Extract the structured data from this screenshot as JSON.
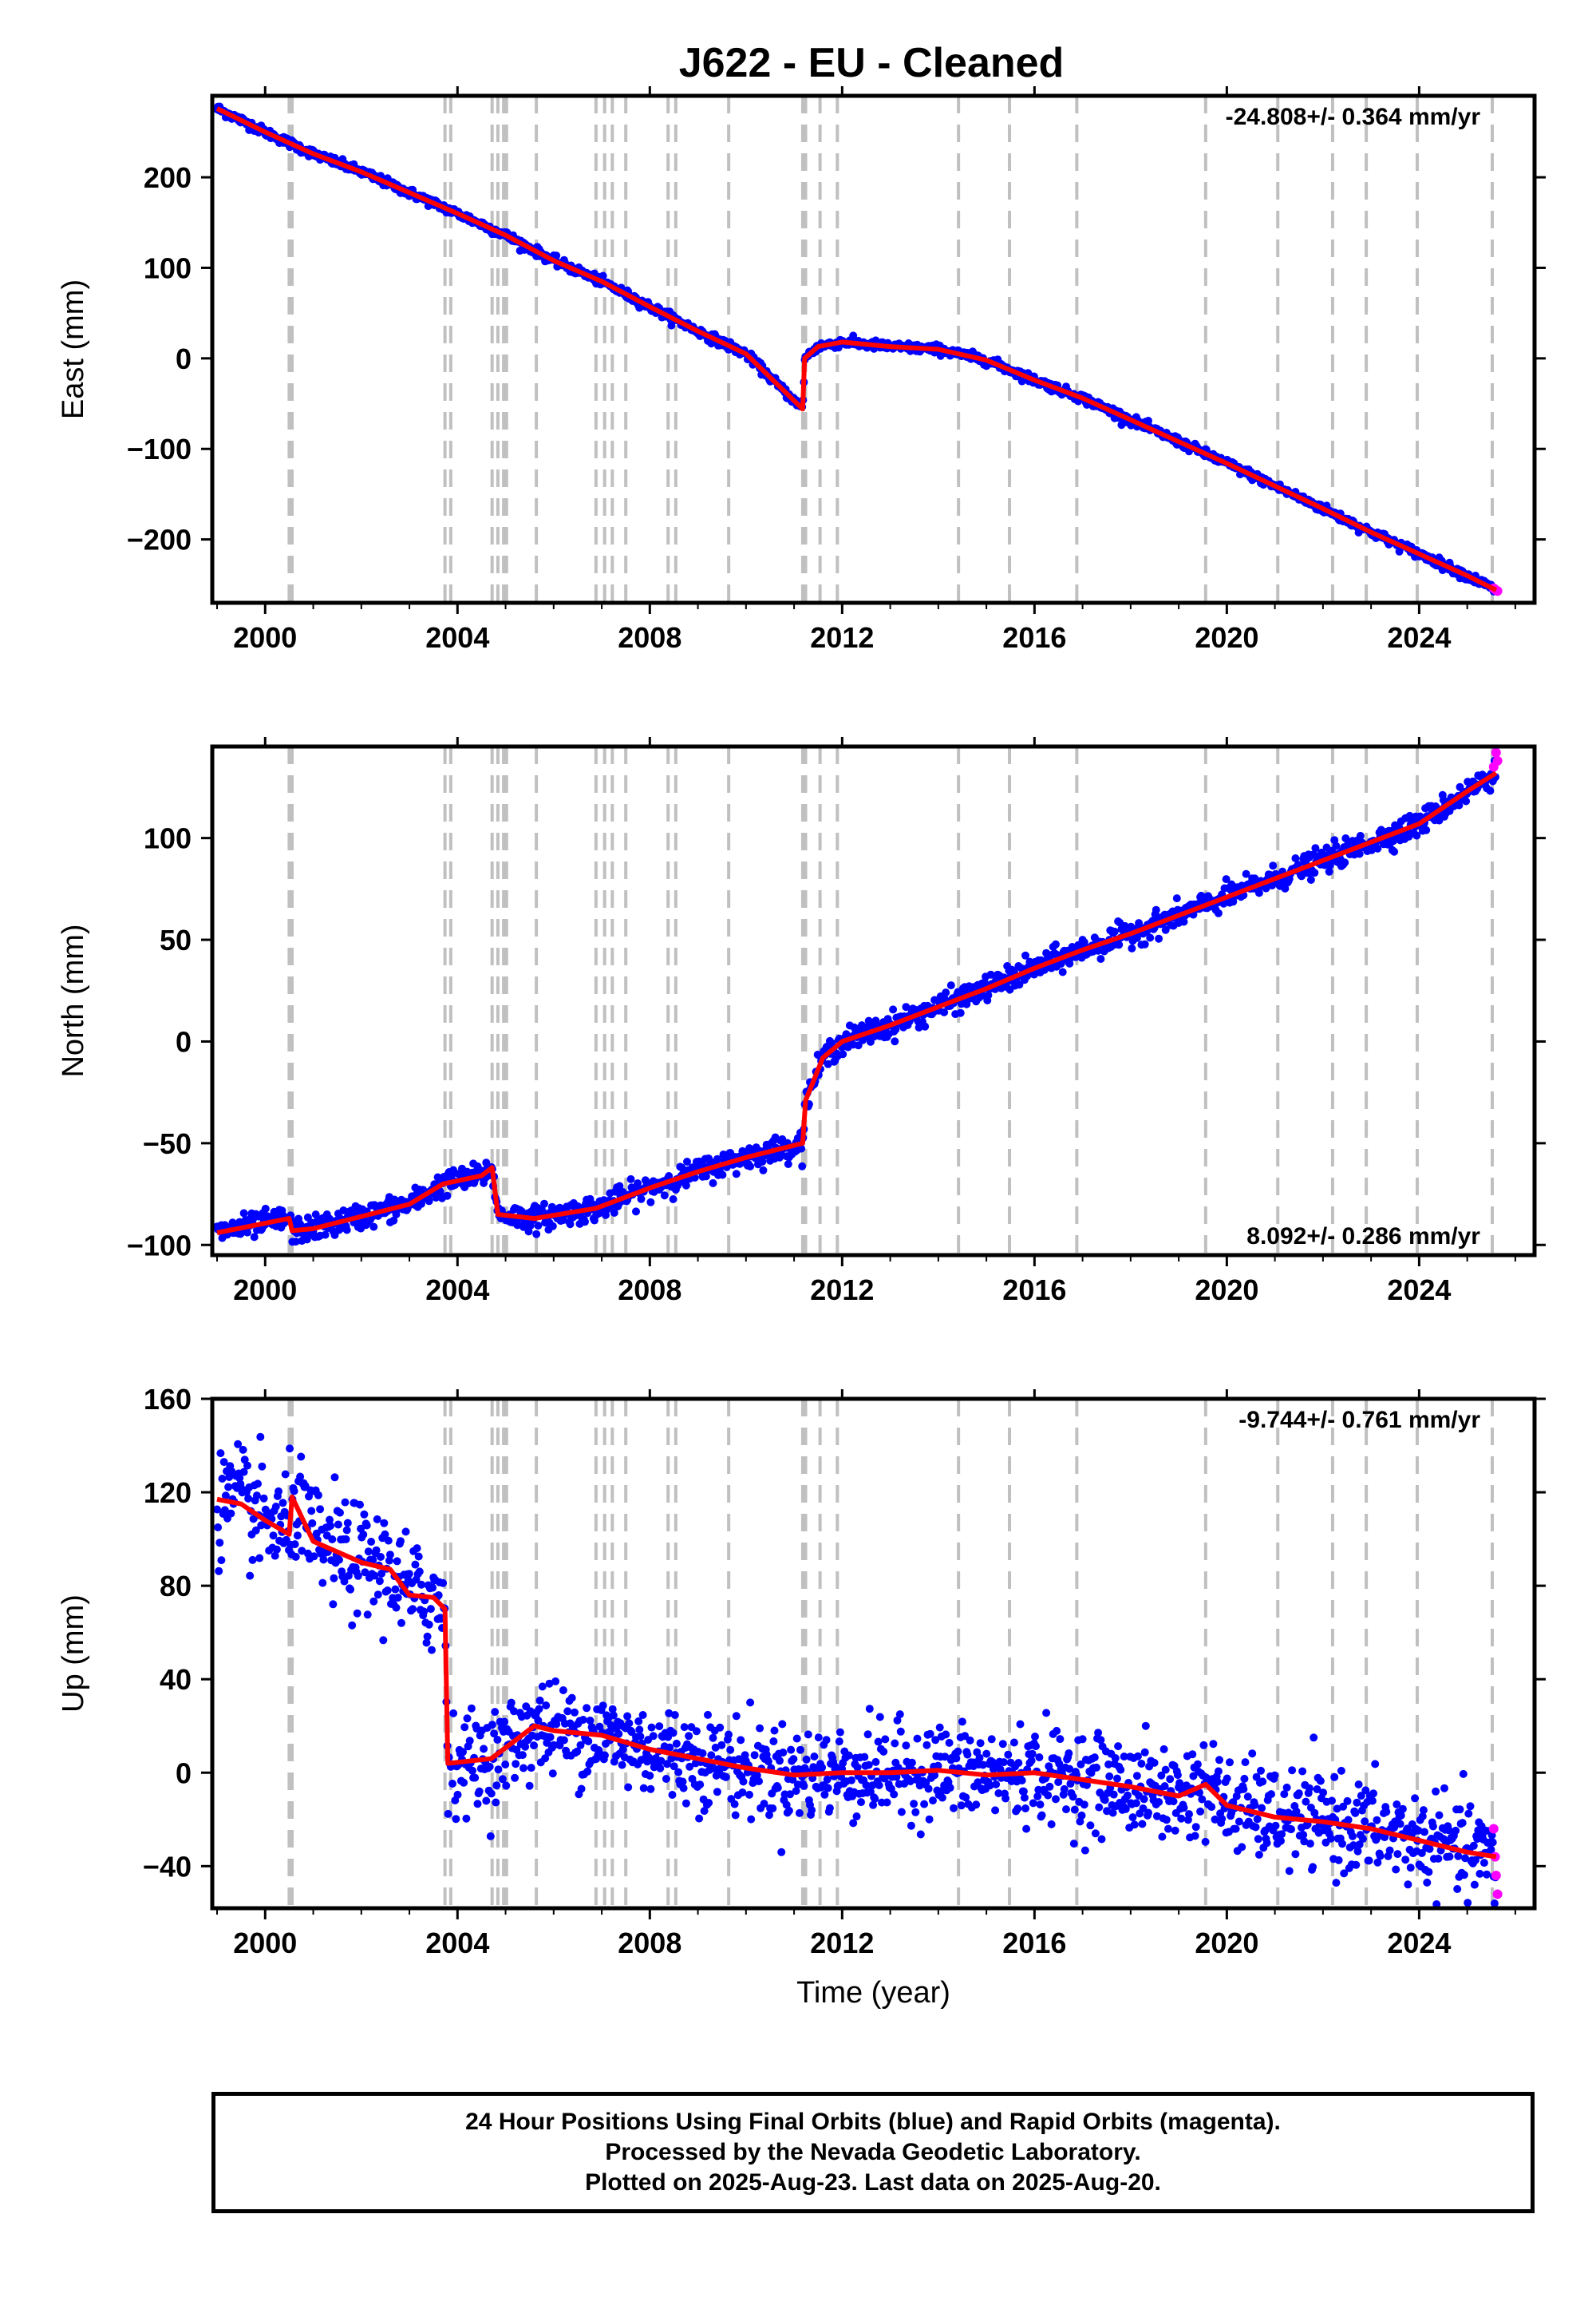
{
  "title": "J622  - EU - Cleaned",
  "footer": {
    "line1": "24 Hour Positions Using Final Orbits (blue) and Rapid Orbits (magenta).",
    "line2": "Processed by the Nevada Geodetic Laboratory.",
    "line3": "Plotted on 2025-Aug-23. Last data on 2025-Aug-20."
  },
  "colors": {
    "final_orbits": "#0000ff",
    "rapid_orbits": "#ff00ff",
    "model": "#ff0000",
    "event_lines": "#c0c0c0"
  },
  "event_lines_years": [
    2000.5,
    2000.56,
    2003.74,
    2003.86,
    2004.72,
    2004.84,
    2004.96,
    2005.02,
    2005.64,
    2006.88,
    2007.06,
    2007.22,
    2007.5,
    2008.38,
    2008.54,
    2009.64,
    2011.18,
    2011.24,
    2011.54,
    2011.9,
    2014.42,
    2015.48,
    2016.88,
    2019.56,
    2021.06,
    2022.2,
    2022.9,
    2023.96,
    2025.52
  ],
  "chart_data": [
    {
      "type": "scatter",
      "name": "east",
      "ylabel": "East (mm)",
      "xlabel": "",
      "xlim": [
        1998.9,
        2026.4
      ],
      "ylim": [
        -270,
        290
      ],
      "xticks": [
        2000,
        2004,
        2008,
        2012,
        2016,
        2020,
        2024
      ],
      "yticks": [
        -200,
        -100,
        0,
        100,
        200
      ],
      "ytick_labels": [
        "−200",
        "−100",
        "0",
        "100",
        "200"
      ],
      "rate_text": "-24.808+/- 0.364 mm/yr",
      "noise_mm": 2.5,
      "x": [
        1999.0,
        2000.0,
        2001.0,
        2002.0,
        2003.0,
        2004.0,
        2005.0,
        2006.0,
        2007.0,
        2008.0,
        2009.0,
        2010.0,
        2011.18,
        2011.22,
        2011.5,
        2012.0,
        2013.0,
        2014.0,
        2015.0,
        2016.0,
        2017.0,
        2018.0,
        2019.0,
        2020.0,
        2021.0,
        2022.0,
        2023.0,
        2024.0,
        2025.0,
        2025.6
      ],
      "model": [
        276,
        250,
        226,
        206,
        183,
        160,
        136,
        108,
        85,
        57,
        30,
        5,
        -56,
        0,
        13,
        18,
        13,
        10,
        -2,
        -24,
        -44,
        -68,
        -92,
        -116,
        -141,
        -166,
        -192,
        -216,
        -240,
        -256
      ],
      "rapid_x": [
        2025.55,
        2025.6,
        2025.63
      ],
      "rapid_y": [
        -254,
        -256,
        -257
      ]
    },
    {
      "type": "scatter",
      "name": "north",
      "ylabel": "North (mm)",
      "xlabel": "",
      "xlim": [
        1998.9,
        2026.4
      ],
      "ylim": [
        -105,
        145
      ],
      "xticks": [
        2000,
        2004,
        2008,
        2012,
        2016,
        2020,
        2024
      ],
      "yticks": [
        -100,
        -50,
        0,
        50,
        100
      ],
      "ytick_labels": [
        "−100",
        "−50",
        "0",
        "50",
        "100"
      ],
      "rate_text": "8.092+/- 0.286 mm/yr",
      "noise_mm": 3,
      "x": [
        1999.0,
        2000.5,
        2000.56,
        2001.0,
        2002.0,
        2003.0,
        2003.7,
        2004.5,
        2004.72,
        2004.84,
        2005.6,
        2006.88,
        2008.0,
        2009.0,
        2010.0,
        2011.18,
        2011.24,
        2011.6,
        2012.0,
        2013.0,
        2014.0,
        2015.0,
        2016.0,
        2017.0,
        2018.0,
        2019.0,
        2020.0,
        2021.0,
        2022.0,
        2023.0,
        2024.0,
        2025.0,
        2025.6
      ],
      "model": [
        -94,
        -87,
        -93,
        -92,
        -86,
        -80,
        -70,
        -66,
        -62,
        -85,
        -87,
        -82,
        -72,
        -64,
        -57,
        -50,
        -29,
        -8,
        0,
        8,
        17,
        26,
        36,
        45,
        53,
        62,
        71,
        80,
        89,
        98,
        107,
        123,
        132
      ],
      "rapid_x": [
        2025.55,
        2025.6,
        2025.63
      ],
      "rapid_y": [
        135,
        142,
        138
      ]
    },
    {
      "type": "scatter",
      "name": "up",
      "ylabel": "Up (mm)",
      "xlabel": "Time (year)",
      "xlim": [
        1998.9,
        2026.4
      ],
      "ylim": [
        -58,
        160
      ],
      "xticks": [
        2000,
        2004,
        2008,
        2012,
        2016,
        2020,
        2024
      ],
      "yticks": [
        -40,
        0,
        40,
        80,
        120,
        160
      ],
      "ytick_labels": [
        "−40",
        "0",
        "40",
        "80",
        "120",
        "160"
      ],
      "rate_text": "-9.744+/- 0.761 mm/yr",
      "noise_mm": 10,
      "x": [
        1999.0,
        1999.5,
        2000.0,
        2000.5,
        2000.56,
        2001.0,
        2002.0,
        2002.6,
        2003.0,
        2003.5,
        2003.74,
        2003.8,
        2004.7,
        2005.6,
        2006.0,
        2007.0,
        2008.0,
        2009.0,
        2010.0,
        2011.0,
        2012.0,
        2013.0,
        2014.0,
        2015.0,
        2016.0,
        2017.0,
        2018.0,
        2019.0,
        2019.56,
        2020.0,
        2021.0,
        2022.0,
        2023.0,
        2024.0,
        2025.0,
        2025.6
      ],
      "model": [
        117,
        115,
        108,
        102,
        118,
        99,
        90,
        87,
        76,
        75,
        70,
        4,
        6,
        20,
        18,
        16,
        10,
        6,
        2,
        -1,
        0,
        0,
        1,
        -1,
        0,
        -3,
        -6,
        -10,
        -5,
        -14,
        -19,
        -21,
        -24,
        -29,
        -34,
        -36
      ],
      "rapid_x": [
        2025.55,
        2025.58,
        2025.6,
        2025.63
      ],
      "rapid_y": [
        -24,
        -36,
        -44,
        -52
      ]
    }
  ]
}
